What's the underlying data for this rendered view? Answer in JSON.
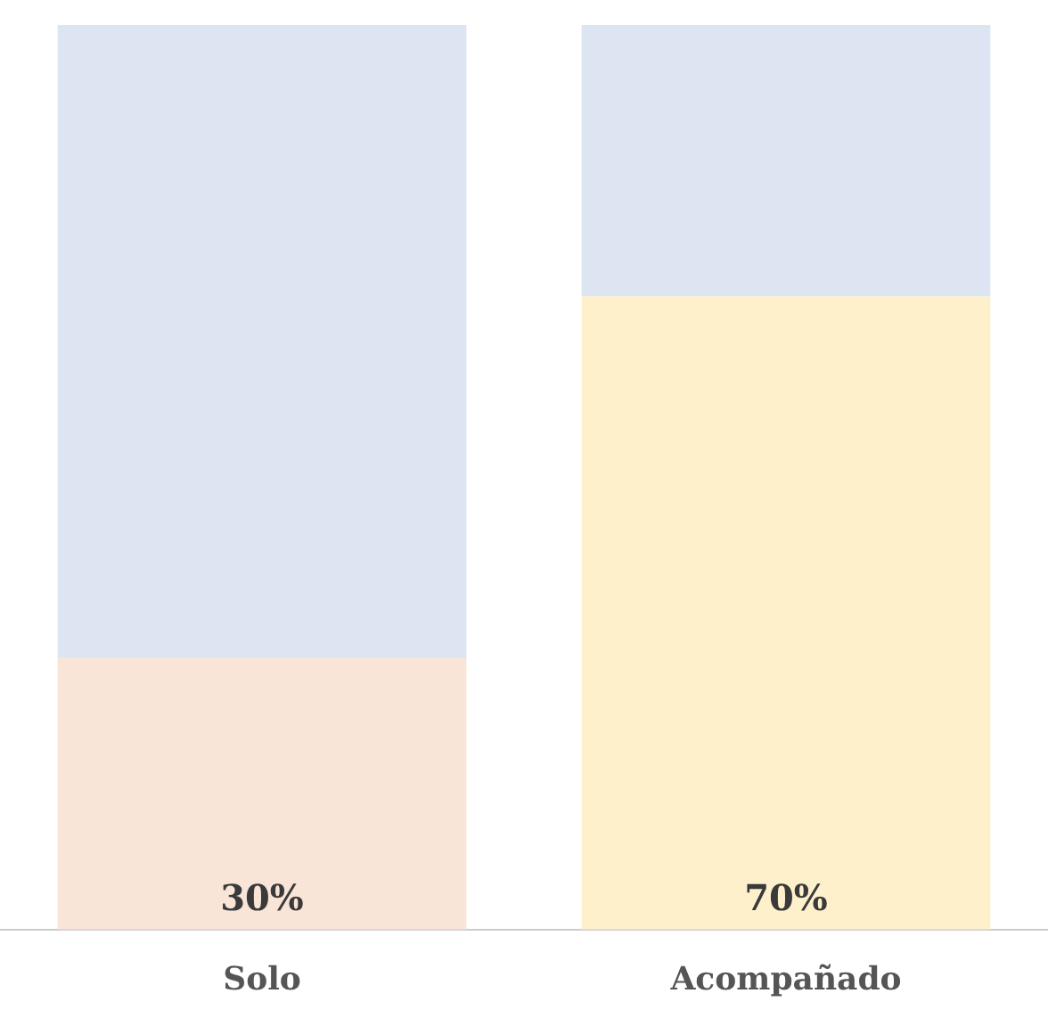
{
  "chart_data": {
    "type": "bar",
    "stacked": true,
    "categories": [
      "Solo",
      "Acompañado"
    ],
    "series": [
      {
        "colors": [
          "#f9e4d8",
          "#fff0cc"
        ],
        "values": [
          30,
          70
        ],
        "value_labels": [
          "30%",
          "70%"
        ]
      },
      {
        "color": "#dde5f2",
        "values": [
          70,
          30
        ]
      }
    ],
    "ylim": [
      0,
      100
    ],
    "tick_labels": "x",
    "grid": false,
    "legend": false
  }
}
